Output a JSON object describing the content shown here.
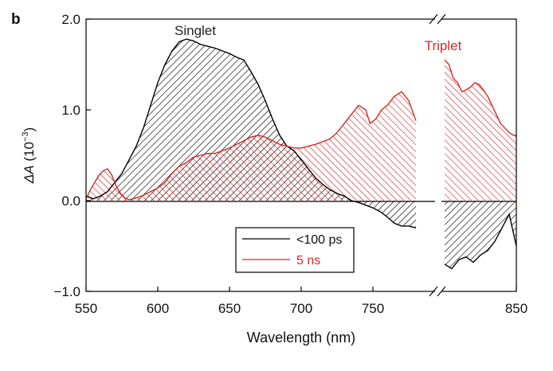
{
  "panel_label": "b",
  "chart_data": {
    "type": "area",
    "xlabel": "Wavelength (nm)",
    "ylabel_prefix": "ΔA",
    "ylabel_unit": "(10",
    "ylabel_exp": "−3",
    "ylabel_close": ")",
    "xlim": [
      550,
      850
    ],
    "x_break": [
      780,
      800
    ],
    "ylim": [
      -1.0,
      2.0
    ],
    "x_ticks": [
      550,
      600,
      650,
      700,
      750,
      850
    ],
    "x_tick_labels": [
      "550",
      "600",
      "650",
      "700",
      "750",
      "850"
    ],
    "y_ticks": [
      2.0,
      1.0,
      0.0,
      -1.0
    ],
    "y_tick_labels": [
      "2.0",
      "1.0",
      "0.0",
      "−1.0"
    ],
    "annotations": [
      {
        "text": "Singlet",
        "x": 620,
        "y": 1.95,
        "color": "#222222"
      },
      {
        "text": "Triplet",
        "x": 826,
        "y": 1.75,
        "color": "#d42a2a"
      }
    ],
    "legend": {
      "placement": "bottom-center",
      "entries": [
        {
          "label": "<100 ps",
          "color": "#000000"
        },
        {
          "label": "5 ns",
          "color": "#d42a2a"
        }
      ]
    },
    "colors": {
      "black_series": "#000000",
      "red_series": "#d42a2a"
    },
    "series": [
      {
        "name": "<100 ps",
        "color": "#000000",
        "segments": [
          [
            [
              550,
              0.05
            ],
            [
              555,
              0.02
            ],
            [
              560,
              0.05
            ],
            [
              565,
              0.1
            ],
            [
              570,
              0.2
            ],
            [
              575,
              0.3
            ],
            [
              580,
              0.45
            ],
            [
              585,
              0.6
            ],
            [
              590,
              0.8
            ],
            [
              595,
              1.05
            ],
            [
              600,
              1.3
            ],
            [
              605,
              1.5
            ],
            [
              610,
              1.65
            ],
            [
              615,
              1.75
            ],
            [
              620,
              1.78
            ],
            [
              625,
              1.76
            ],
            [
              630,
              1.72
            ],
            [
              635,
              1.7
            ],
            [
              640,
              1.68
            ],
            [
              645,
              1.65
            ],
            [
              650,
              1.62
            ],
            [
              655,
              1.58
            ],
            [
              660,
              1.55
            ],
            [
              665,
              1.42
            ],
            [
              670,
              1.28
            ],
            [
              675,
              1.1
            ],
            [
              680,
              0.9
            ],
            [
              685,
              0.72
            ],
            [
              690,
              0.6
            ],
            [
              695,
              0.55
            ],
            [
              700,
              0.45
            ],
            [
              705,
              0.35
            ],
            [
              710,
              0.25
            ],
            [
              715,
              0.18
            ],
            [
              720,
              0.12
            ],
            [
              725,
              0.08
            ],
            [
              730,
              0.05
            ],
            [
              735,
              0.0
            ],
            [
              740,
              -0.02
            ],
            [
              745,
              -0.05
            ],
            [
              750,
              -0.08
            ],
            [
              755,
              -0.12
            ],
            [
              760,
              -0.18
            ],
            [
              765,
              -0.25
            ],
            [
              770,
              -0.28
            ],
            [
              775,
              -0.28
            ],
            [
              780,
              -0.3
            ]
          ],
          [
            [
              800,
              -0.7
            ],
            [
              805,
              -0.75
            ],
            [
              810,
              -0.65
            ],
            [
              815,
              -0.62
            ],
            [
              820,
              -0.68
            ],
            [
              825,
              -0.6
            ],
            [
              830,
              -0.55
            ],
            [
              835,
              -0.45
            ],
            [
              840,
              -0.3
            ],
            [
              845,
              -0.15
            ],
            [
              850,
              -0.5
            ]
          ]
        ]
      },
      {
        "name": "5 ns",
        "color": "#d42a2a",
        "segments": [
          [
            [
              550,
              0.02
            ],
            [
              553,
              0.12
            ],
            [
              556,
              0.2
            ],
            [
              559,
              0.28
            ],
            [
              562,
              0.33
            ],
            [
              565,
              0.35
            ],
            [
              568,
              0.28
            ],
            [
              571,
              0.16
            ],
            [
              574,
              0.08
            ],
            [
              577,
              0.03
            ],
            [
              580,
              0.01
            ],
            [
              585,
              0.03
            ],
            [
              590,
              0.06
            ],
            [
              595,
              0.1
            ],
            [
              600,
              0.14
            ],
            [
              605,
              0.2
            ],
            [
              610,
              0.3
            ],
            [
              615,
              0.38
            ],
            [
              620,
              0.42
            ],
            [
              625,
              0.48
            ],
            [
              630,
              0.5
            ],
            [
              635,
              0.52
            ],
            [
              640,
              0.52
            ],
            [
              645,
              0.55
            ],
            [
              650,
              0.58
            ],
            [
              655,
              0.62
            ],
            [
              660,
              0.66
            ],
            [
              665,
              0.7
            ],
            [
              670,
              0.72
            ],
            [
              675,
              0.7
            ],
            [
              680,
              0.66
            ],
            [
              685,
              0.62
            ],
            [
              690,
              0.6
            ],
            [
              695,
              0.58
            ],
            [
              700,
              0.58
            ],
            [
              705,
              0.6
            ],
            [
              710,
              0.62
            ],
            [
              715,
              0.65
            ],
            [
              720,
              0.68
            ],
            [
              725,
              0.75
            ],
            [
              730,
              0.85
            ],
            [
              735,
              0.95
            ],
            [
              740,
              1.05
            ],
            [
              745,
              1.0
            ],
            [
              748,
              0.85
            ],
            [
              752,
              0.9
            ],
            [
              756,
              1.0
            ],
            [
              760,
              1.05
            ],
            [
              765,
              1.15
            ],
            [
              770,
              1.2
            ],
            [
              775,
              1.1
            ],
            [
              780,
              0.88
            ]
          ],
          [
            [
              800,
              1.55
            ],
            [
              803,
              1.5
            ],
            [
              806,
              1.35
            ],
            [
              809,
              1.3
            ],
            [
              812,
              1.2
            ],
            [
              815,
              1.22
            ],
            [
              818,
              1.25
            ],
            [
              821,
              1.3
            ],
            [
              824,
              1.28
            ],
            [
              827,
              1.22
            ],
            [
              830,
              1.15
            ],
            [
              833,
              1.05
            ],
            [
              836,
              0.95
            ],
            [
              839,
              0.85
            ],
            [
              842,
              0.8
            ],
            [
              845,
              0.75
            ],
            [
              848,
              0.72
            ],
            [
              850,
              0.72
            ]
          ]
        ]
      }
    ]
  }
}
